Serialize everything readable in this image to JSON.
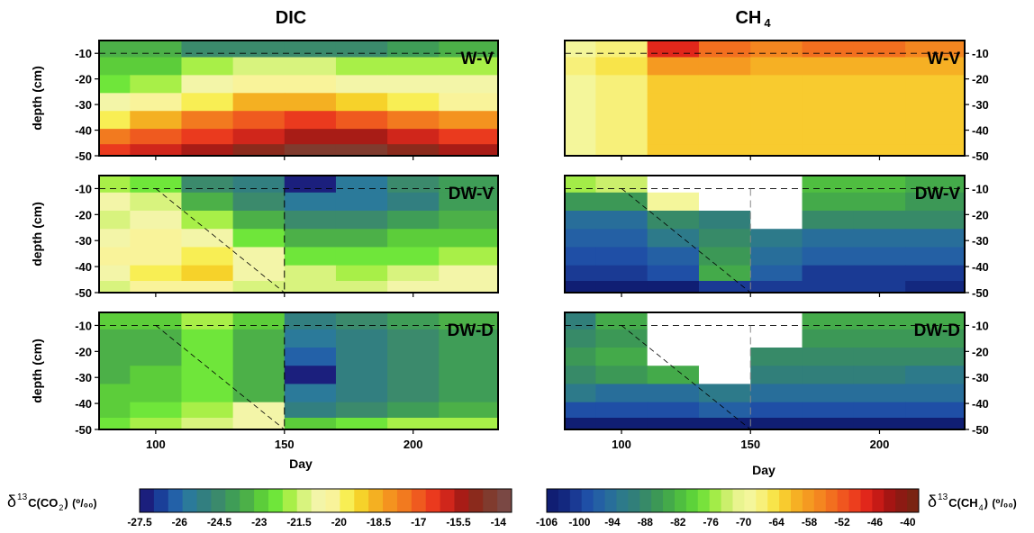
{
  "titles": {
    "left": "DIC",
    "right_main": "CH",
    "right_sub": "4"
  },
  "axis": {
    "ylabel": "depth (cm)",
    "xlabel": "Day"
  },
  "colorbars": {
    "dic": {
      "label_delta": "δ",
      "label_sup": "13",
      "label_c": "C(CO",
      "label_sub": "2",
      "label_close": ")",
      "unit": "(⁰/₀₀)",
      "min": -27.5,
      "max": -13.5,
      "ticks": [
        "-27.5",
        "-26",
        "-24.5",
        "-23",
        "-21.5",
        "-20",
        "-18.5",
        "-17",
        "-15.5",
        "-14"
      ]
    },
    "ch4": {
      "label_delta": "δ",
      "label_sup": "13",
      "label_c": "C(CH",
      "label_sub": "4",
      "label_close": ")",
      "unit": "(⁰/₀₀)",
      "min": -106,
      "max": -38,
      "ticks": [
        "-106",
        "-100",
        "-94",
        "-88",
        "-82",
        "-76",
        "-70",
        "-64",
        "-58",
        "-52",
        "-46",
        "-40"
      ]
    }
  },
  "chart_data": [
    {
      "type": "heatmap",
      "title": "DIC",
      "panel": "W-V",
      "xlabel": "",
      "ylabel": "depth (cm)",
      "xlim": [
        78,
        233
      ],
      "ylim": [
        -50,
        -5
      ],
      "x_ticks": [
        100,
        150,
        200
      ],
      "y_ticks": [
        -10,
        -20,
        -30,
        -40,
        -50
      ],
      "hline_y": -10,
      "x": [
        80,
        100,
        120,
        140,
        160,
        180,
        200,
        220
      ],
      "y": [
        -8,
        -15,
        -22,
        -29,
        -36,
        -43,
        -48
      ],
      "z": [
        [
          -23.5,
          -23.5,
          -24.5,
          -24.5,
          -24.5,
          -24.5,
          -24.0,
          -23.5
        ],
        [
          -23.0,
          -23.0,
          -22.0,
          -21.5,
          -21.5,
          -22.0,
          -22.0,
          -22.0
        ],
        [
          -22.5,
          -22.0,
          -21.0,
          -20.5,
          -20.5,
          -21.0,
          -21.0,
          -21.0
        ],
        [
          -21.0,
          -20.5,
          -19.5,
          -18.5,
          -18.5,
          -19.0,
          -19.5,
          -20.0
        ],
        [
          -19.5,
          -18.5,
          -17.5,
          -17.0,
          -16.5,
          -17.0,
          -17.5,
          -18.0
        ],
        [
          -17.5,
          -17.0,
          -16.5,
          -16.0,
          -15.5,
          -15.5,
          -16.0,
          -16.5
        ],
        [
          -16.5,
          -16.0,
          -15.5,
          -15.0,
          -14.5,
          -14.5,
          -15.0,
          -15.5
        ]
      ]
    },
    {
      "type": "heatmap",
      "title": "DIC",
      "panel": "DW-V",
      "xlabel": "",
      "ylabel": "depth (cm)",
      "xlim": [
        78,
        233
      ],
      "ylim": [
        -50,
        -5
      ],
      "x_ticks": [
        100,
        150,
        200
      ],
      "y_ticks": [
        -10,
        -20,
        -30,
        -40,
        -50
      ],
      "hline_y": -10,
      "vline_x": 150,
      "x": [
        80,
        100,
        120,
        140,
        160,
        180,
        200,
        220
      ],
      "y": [
        -8,
        -15,
        -22,
        -29,
        -36,
        -43,
        -48
      ],
      "z": [
        [
          -22.0,
          -22.5,
          -24.5,
          -25.0,
          -27.0,
          -25.5,
          -24.5,
          -24.0
        ],
        [
          -21.0,
          -21.5,
          -23.5,
          -24.5,
          -25.5,
          -25.5,
          -25.0,
          -24.0
        ],
        [
          -21.5,
          -21.0,
          -22.0,
          -23.5,
          -24.5,
          -24.5,
          -24.0,
          -23.5
        ],
        [
          -21.0,
          -20.5,
          -21.0,
          -22.5,
          -23.5,
          -23.5,
          -23.0,
          -23.0
        ],
        [
          -20.5,
          -20.0,
          -19.5,
          -21.0,
          -22.5,
          -22.5,
          -22.5,
          -22.0
        ],
        [
          -21.0,
          -19.5,
          -19.0,
          -21.0,
          -21.5,
          -22.0,
          -21.5,
          -21.0
        ],
        [
          -21.5,
          -20.5,
          -20.5,
          -21.5,
          -21.5,
          -21.5,
          -21.0,
          -21.0
        ]
      ]
    },
    {
      "type": "heatmap",
      "title": "DIC",
      "panel": "DW-D",
      "xlabel": "Day",
      "ylabel": "depth (cm)",
      "xlim": [
        78,
        233
      ],
      "ylim": [
        -50,
        -5
      ],
      "x_ticks": [
        100,
        150,
        200
      ],
      "y_ticks": [
        -10,
        -20,
        -30,
        -40,
        -50
      ],
      "hline_y": -10,
      "vline_x": 150,
      "x": [
        80,
        100,
        120,
        140,
        160,
        180,
        200,
        220
      ],
      "y": [
        -8,
        -15,
        -22,
        -29,
        -36,
        -43,
        -48
      ],
      "z": [
        [
          -23.0,
          -23.0,
          -22.0,
          -23.0,
          -25.0,
          -24.5,
          -24.0,
          -23.5
        ],
        [
          -23.5,
          -23.5,
          -22.5,
          -23.5,
          -25.5,
          -25.0,
          -24.5,
          -24.0
        ],
        [
          -23.5,
          -23.5,
          -22.5,
          -23.5,
          -26.0,
          -25.0,
          -24.5,
          -24.0
        ],
        [
          -23.5,
          -23.0,
          -22.5,
          -23.5,
          -27.0,
          -25.0,
          -24.5,
          -24.0
        ],
        [
          -23.0,
          -23.0,
          -22.5,
          -23.5,
          -25.5,
          -25.0,
          -24.5,
          -24.0
        ],
        [
          -23.0,
          -22.5,
          -22.0,
          -21.0,
          -25.0,
          -24.5,
          -24.0,
          -23.5
        ],
        [
          -22.5,
          -22.0,
          -21.5,
          -21.0,
          -23.0,
          -22.5,
          -22.0,
          -22.0
        ]
      ]
    },
    {
      "type": "heatmap",
      "title": "CH4",
      "panel": "W-V",
      "xlabel": "",
      "ylabel": "depth (cm)",
      "xlim": [
        78,
        233
      ],
      "ylim": [
        -50,
        -5
      ],
      "x_ticks": [
        100,
        150,
        200
      ],
      "y_ticks": [
        -10,
        -20,
        -30,
        -40,
        -50
      ],
      "hline_y": -10,
      "x": [
        80,
        100,
        120,
        140,
        160,
        180,
        200,
        220
      ],
      "y": [
        -8,
        -15,
        -22,
        -29,
        -36,
        -43,
        -48
      ],
      "z": [
        [
          -68,
          -66,
          -48,
          -54,
          -56,
          -54,
          -54,
          -56
        ],
        [
          -66,
          -64,
          -58,
          -58,
          -60,
          -60,
          -60,
          -60
        ],
        [
          -68,
          -66,
          -62,
          -62,
          -62,
          -62,
          -62,
          -62
        ],
        [
          -68,
          -66,
          -62,
          -62,
          -62,
          -62,
          -62,
          -62
        ],
        [
          -68,
          -66,
          -62,
          -62,
          -62,
          -62,
          -62,
          -62
        ],
        [
          -68,
          -66,
          -62,
          -62,
          -62,
          -62,
          -62,
          -62
        ],
        [
          -68,
          -66,
          -62,
          -62,
          -62,
          -62,
          -62,
          -62
        ]
      ]
    },
    {
      "type": "heatmap",
      "title": "CH4",
      "panel": "DW-V",
      "xlabel": "",
      "ylabel": "depth (cm)",
      "xlim": [
        78,
        233
      ],
      "ylim": [
        -50,
        -5
      ],
      "x_ticks": [
        100,
        150,
        200
      ],
      "y_ticks": [
        -10,
        -20,
        -30,
        -40,
        -50
      ],
      "hline_y": -10,
      "vline_x": 150,
      "x": [
        80,
        100,
        120,
        140,
        160,
        180,
        200,
        220
      ],
      "y": [
        -8,
        -15,
        -22,
        -29,
        -36,
        -43,
        -48
      ],
      "z": [
        [
          -76,
          -74,
          null,
          null,
          null,
          -82,
          -82,
          -84
        ],
        [
          -86,
          -86,
          -68,
          null,
          null,
          -84,
          -84,
          -86
        ],
        [
          -94,
          -94,
          -88,
          -90,
          null,
          -88,
          -88,
          -88
        ],
        [
          -96,
          -96,
          -92,
          -88,
          -92,
          -94,
          -94,
          -94
        ],
        [
          -98,
          -98,
          -96,
          -86,
          -94,
          -96,
          -96,
          -96
        ],
        [
          -100,
          -100,
          -98,
          -84,
          -96,
          -100,
          -100,
          -100
        ],
        [
          -104,
          -104,
          -104,
          -100,
          -100,
          -100,
          -100,
          -102
        ]
      ]
    },
    {
      "type": "heatmap",
      "title": "CH4",
      "panel": "DW-D",
      "xlabel": "Day",
      "ylabel": "depth (cm)",
      "xlim": [
        78,
        233
      ],
      "ylim": [
        -50,
        -5
      ],
      "x_ticks": [
        100,
        150,
        200
      ],
      "y_ticks": [
        -10,
        -20,
        -30,
        -40,
        -50
      ],
      "hline_y": -10,
      "vline_x": 150,
      "x": [
        80,
        100,
        120,
        140,
        160,
        180,
        200,
        220
      ],
      "y": [
        -8,
        -15,
        -22,
        -29,
        -36,
        -43,
        -48
      ],
      "z": [
        [
          -90,
          -84,
          null,
          null,
          null,
          -84,
          -84,
          -84
        ],
        [
          -88,
          -86,
          null,
          null,
          null,
          -86,
          -86,
          -86
        ],
        [
          -86,
          -84,
          null,
          null,
          -88,
          -88,
          -88,
          -88
        ],
        [
          -88,
          -86,
          -84,
          null,
          -90,
          -90,
          -90,
          -92
        ],
        [
          -92,
          -94,
          -94,
          -92,
          -94,
          -94,
          -94,
          -94
        ],
        [
          -98,
          -98,
          -98,
          -96,
          -98,
          -98,
          -98,
          -98
        ],
        [
          -104,
          -104,
          -104,
          -104,
          -104,
          -104,
          -104,
          -104
        ]
      ]
    }
  ]
}
